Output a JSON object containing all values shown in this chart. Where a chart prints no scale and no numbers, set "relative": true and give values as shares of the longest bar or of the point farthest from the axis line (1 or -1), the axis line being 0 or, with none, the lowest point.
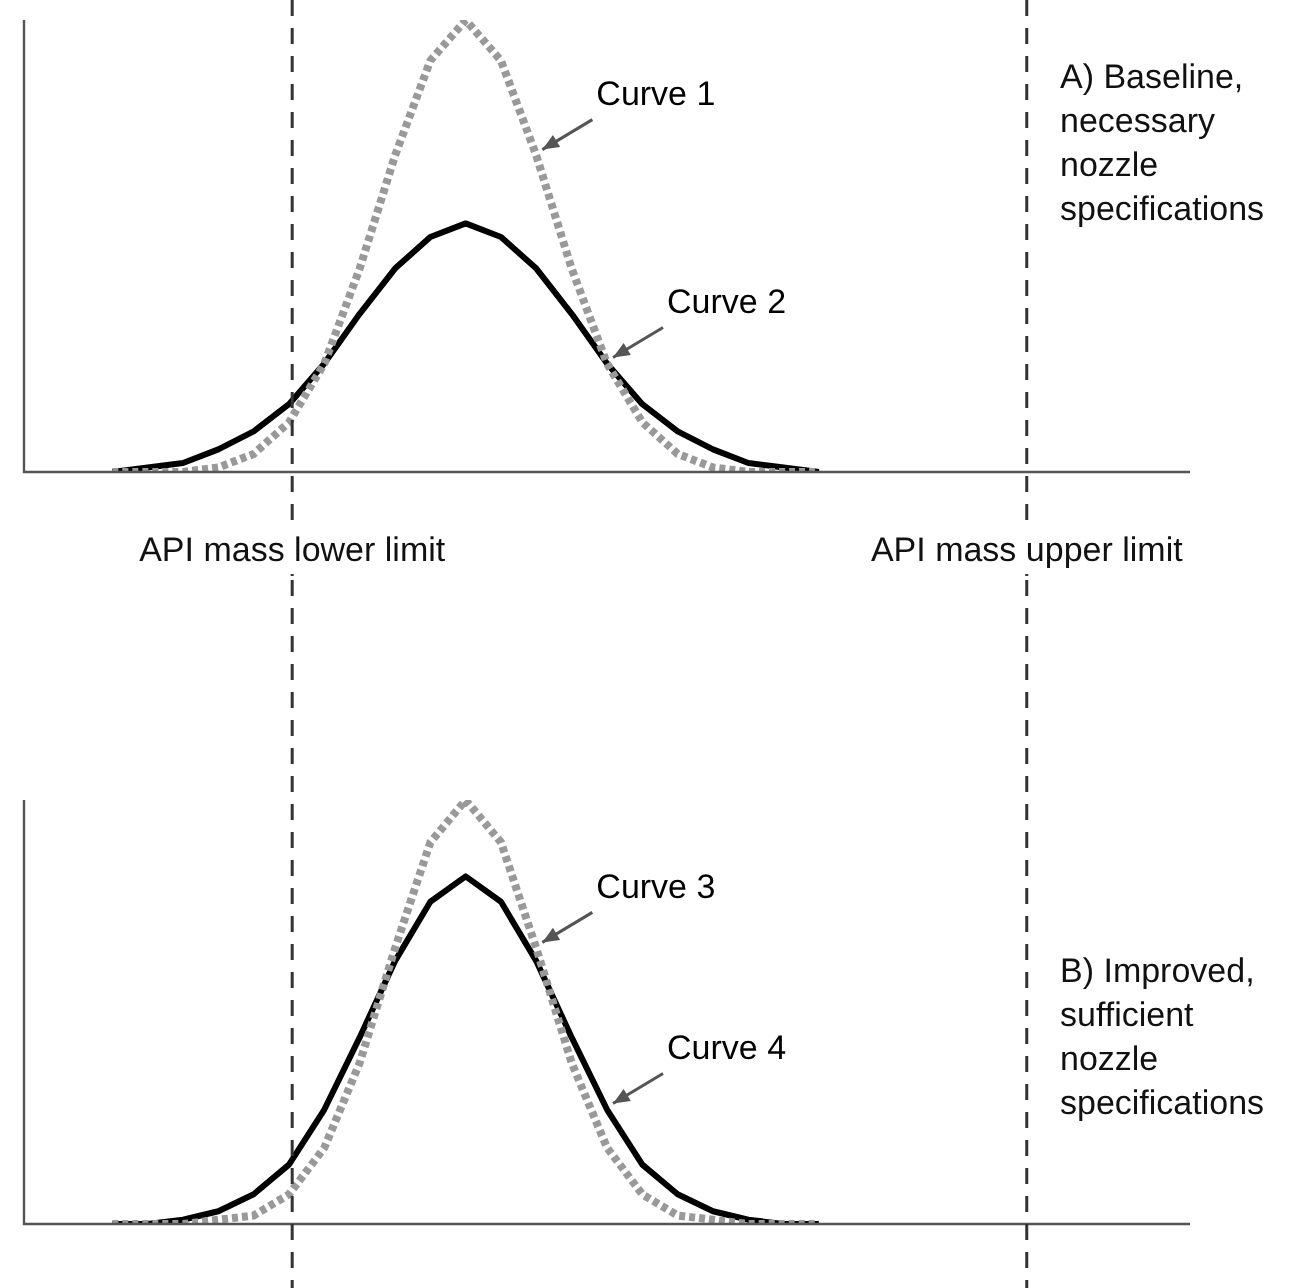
{
  "chart_data": [
    {
      "type": "line",
      "relative": true,
      "tick_labels": false,
      "categories": [
        null,
        null,
        null,
        null,
        null,
        null,
        null,
        null,
        null,
        null,
        null,
        null,
        null,
        null,
        null,
        null,
        null,
        null,
        null,
        null,
        null,
        null,
        null,
        null,
        null,
        null,
        null,
        null,
        null,
        null,
        null,
        null,
        null
      ],
      "series": [
        {
          "name": "Curve 1",
          "color": "#999999",
          "line_style": "dotted",
          "values": [
            null,
            null,
            0,
            0,
            0,
            0.01,
            0.04,
            0.11,
            0.24,
            0.45,
            0.7,
            0.91,
            1,
            0.91,
            0.7,
            0.45,
            0.24,
            0.11,
            0.04,
            0.01,
            0,
            0,
            0,
            null,
            null,
            null,
            null,
            null,
            null,
            null,
            null,
            null,
            null
          ]
        },
        {
          "name": "Curve 2",
          "color": "#000000",
          "line_style": "solid",
          "values": [
            null,
            null,
            0,
            0.01,
            0.02,
            0.05,
            0.09,
            0.15,
            0.24,
            0.35,
            0.45,
            0.52,
            0.55,
            0.52,
            0.45,
            0.35,
            0.24,
            0.15,
            0.09,
            0.05,
            0.02,
            0.01,
            0,
            null,
            null,
            null,
            null,
            null,
            null,
            null,
            null,
            null,
            null
          ]
        }
      ],
      "ref_lines": [
        {
          "axis": "x",
          "label": "API mass lower limit",
          "color": "#333333",
          "line_style": "dashed"
        },
        {
          "axis": "x",
          "label": "API mass upper limit",
          "color": "#333333",
          "line_style": "dashed"
        }
      ],
      "annotations": [
        "A) Baseline, necessary nozzle specifications"
      ]
    },
    {
      "type": "line",
      "relative": true,
      "tick_labels": false,
      "categories": [
        null,
        null,
        null,
        null,
        null,
        null,
        null,
        null,
        null,
        null,
        null,
        null,
        null,
        null,
        null,
        null,
        null,
        null,
        null,
        null,
        null,
        null,
        null,
        null,
        null,
        null,
        null,
        null,
        null,
        null,
        null,
        null,
        null
      ],
      "series": [
        {
          "name": "Curve 3",
          "color": "#999999",
          "line_style": "dotted",
          "values": [
            null,
            null,
            0,
            0,
            0,
            0.01,
            0.02,
            0.07,
            0.18,
            0.38,
            0.65,
            0.9,
            1,
            0.9,
            0.65,
            0.38,
            0.18,
            0.07,
            0.02,
            0.01,
            0,
            0,
            0,
            null,
            null,
            null,
            null,
            null,
            null,
            null,
            null,
            null,
            null
          ]
        },
        {
          "name": "Curve 4",
          "color": "#000000",
          "line_style": "solid",
          "values": [
            null,
            null,
            0,
            0,
            0.01,
            0.03,
            0.07,
            0.14,
            0.27,
            0.44,
            0.62,
            0.76,
            0.82,
            0.76,
            0.62,
            0.44,
            0.27,
            0.14,
            0.07,
            0.03,
            0.01,
            0,
            0,
            null,
            null,
            null,
            null,
            null,
            null,
            null,
            null,
            null,
            null
          ]
        }
      ],
      "ref_lines": [
        {
          "axis": "x",
          "color": "#333333",
          "line_style": "dashed"
        },
        {
          "axis": "x",
          "color": "#333333",
          "line_style": "dashed"
        }
      ],
      "annotations": [
        "B) Improved, sufficient nozzle specifications"
      ]
    }
  ]
}
